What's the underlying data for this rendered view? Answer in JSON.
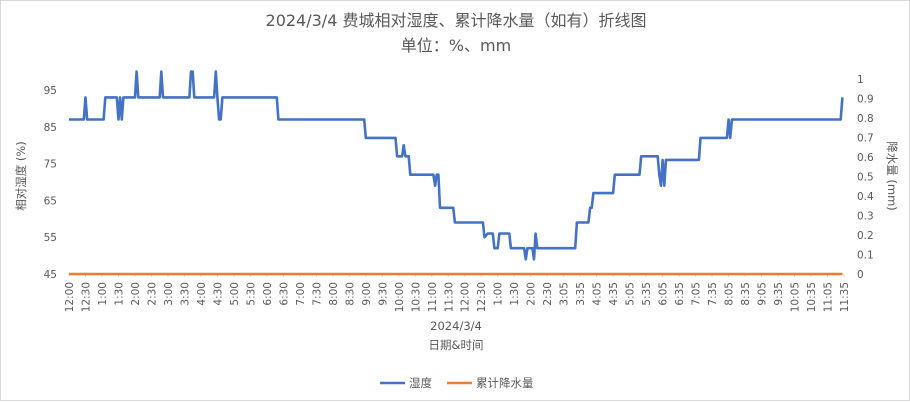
{
  "chart_data": {
    "type": "line",
    "title": "2024/3/4 费城相对湿度、累计降水量（如有）折线图",
    "subtitle": "单位：%、mm",
    "xlabel": "日期&时间",
    "date_label": "2024/3/4",
    "ylabel_left": "相对湿度 (%)",
    "ylabel_right": "降水量 (mm)",
    "y_left_ticks": [
      45,
      55,
      65,
      75,
      85,
      95
    ],
    "y_left_range": [
      45,
      98
    ],
    "y_right_ticks": [
      "0",
      "0.1",
      "0.2",
      "0.3",
      "0.4",
      "0.5",
      "0.6",
      "0.7",
      "0.8",
      "0.9",
      "1"
    ],
    "y_right_range": [
      0,
      1
    ],
    "x_tick_labels": [
      "12:00",
      "12:30",
      "1:00",
      "1:30",
      "2:00",
      "2:30",
      "3:00",
      "3:30",
      "4:00",
      "4:30",
      "5:00",
      "5:30",
      "6:00",
      "6:30",
      "7:00",
      "7:30",
      "8:00",
      "8:30",
      "9:00",
      "9:30",
      "10:00",
      "10:30",
      "11:00",
      "11:30",
      "12:00",
      "12:30",
      "1:00",
      "1:30",
      "2:00",
      "2:30",
      "3:05",
      "3:35",
      "4:05",
      "4:35",
      "5:05",
      "5:35",
      "6:05",
      "6:35",
      "7:05",
      "7:35",
      "8:05",
      "8:35",
      "9:05",
      "9:35",
      "10:05",
      "10:35",
      "11:05",
      "11:35"
    ],
    "grid": false,
    "legend_position": "bottom",
    "series": [
      {
        "name": "湿度",
        "color": "#4472c4",
        "axis": "left",
        "points": [
          [
            0,
            87
          ],
          [
            0.9,
            87
          ],
          [
            1,
            93
          ],
          [
            1.1,
            87
          ],
          [
            2.1,
            87
          ],
          [
            2.2,
            93
          ],
          [
            2.9,
            93
          ],
          [
            3,
            87
          ],
          [
            3.1,
            93
          ],
          [
            3.2,
            87
          ],
          [
            3.3,
            93
          ],
          [
            4,
            93
          ],
          [
            4.1,
            100
          ],
          [
            4.2,
            93
          ],
          [
            5.5,
            93
          ],
          [
            5.6,
            100
          ],
          [
            5.7,
            93
          ],
          [
            7.3,
            93
          ],
          [
            7.4,
            100
          ],
          [
            7.5,
            100
          ],
          [
            7.6,
            93
          ],
          [
            8.8,
            93
          ],
          [
            8.9,
            100
          ],
          [
            9,
            93
          ],
          [
            9.1,
            87
          ],
          [
            9.2,
            87
          ],
          [
            9.3,
            93
          ],
          [
            12.6,
            93
          ],
          [
            12.7,
            87
          ],
          [
            17.9,
            87
          ],
          [
            18,
            82
          ],
          [
            19.8,
            82
          ],
          [
            19.9,
            77
          ],
          [
            20.2,
            77
          ],
          [
            20.3,
            80
          ],
          [
            20.4,
            77
          ],
          [
            20.6,
            77
          ],
          [
            20.7,
            72
          ],
          [
            22.1,
            72
          ],
          [
            22.2,
            69
          ],
          [
            22.3,
            72
          ],
          [
            22.4,
            72
          ],
          [
            22.5,
            63
          ],
          [
            23.3,
            63
          ],
          [
            23.4,
            59
          ],
          [
            25.1,
            59
          ],
          [
            25.2,
            55
          ],
          [
            25.4,
            56
          ],
          [
            25.7,
            56
          ],
          [
            25.8,
            52
          ],
          [
            26,
            52
          ],
          [
            26.1,
            56
          ],
          [
            26.7,
            56
          ],
          [
            26.8,
            52
          ],
          [
            27.6,
            52
          ],
          [
            27.7,
            49
          ],
          [
            27.8,
            52
          ],
          [
            28.1,
            52
          ],
          [
            28.2,
            49
          ],
          [
            28.3,
            56
          ],
          [
            28.4,
            52
          ],
          [
            30.7,
            52
          ],
          [
            30.8,
            59
          ],
          [
            31.5,
            59
          ],
          [
            31.6,
            63
          ],
          [
            31.7,
            63
          ],
          [
            31.8,
            67
          ],
          [
            33,
            67
          ],
          [
            33.1,
            72
          ],
          [
            34.6,
            72
          ],
          [
            34.7,
            77
          ],
          [
            35.7,
            77
          ],
          [
            35.8,
            72
          ],
          [
            35.9,
            69
          ],
          [
            36,
            76
          ],
          [
            36.1,
            69
          ],
          [
            36.2,
            76
          ],
          [
            38.2,
            76
          ],
          [
            38.3,
            82
          ],
          [
            39.9,
            82
          ],
          [
            40,
            87
          ],
          [
            40.1,
            82
          ],
          [
            40.2,
            87
          ],
          [
            46.8,
            87
          ],
          [
            46.9,
            93
          ]
        ]
      },
      {
        "name": "累计降水量",
        "color": "#ed7d31",
        "axis": "right",
        "points": [
          [
            0,
            0
          ],
          [
            46.9,
            0
          ]
        ]
      }
    ]
  }
}
